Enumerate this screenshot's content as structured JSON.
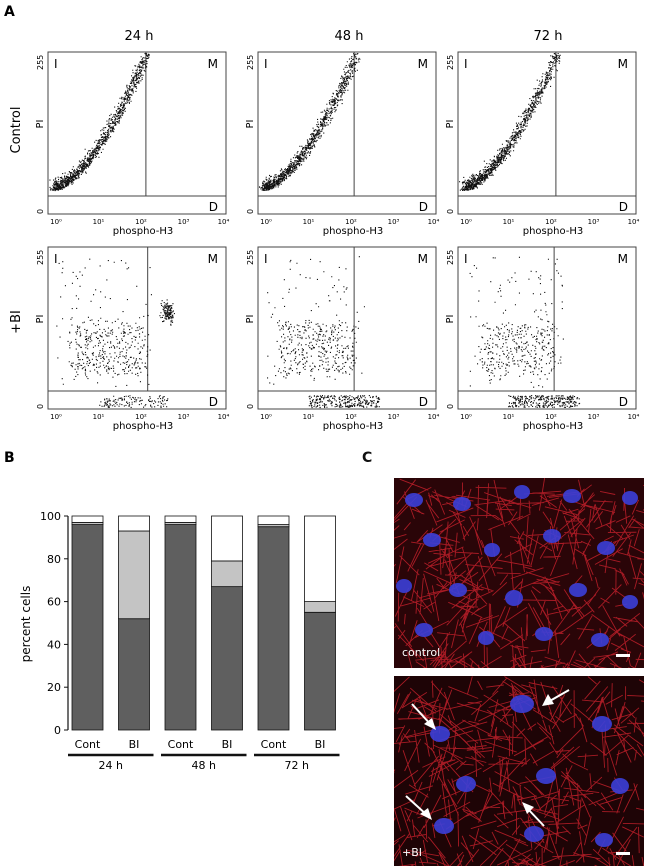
{
  "figure": {
    "panel_a_label": "A",
    "panel_b_label": "B",
    "panel_c_label": "C"
  },
  "panel_a": {
    "time_labels": [
      "24 h",
      "48 h",
      "72 h"
    ],
    "row_labels": [
      "Control",
      "+BI"
    ],
    "x_axis_label": "phospho-H3",
    "y_axis_label": "PI",
    "y_top_tick": "255",
    "y_bottom_tick": "0",
    "quadrant_labels": {
      "interphase": "I",
      "mitosis": "M",
      "debris": "D"
    },
    "x_ticks": [
      "10⁰",
      "10¹",
      "10²",
      "10³",
      "10⁴"
    ]
  },
  "chart_data": {
    "type": "bar",
    "stacked": true,
    "ylabel": "percent cells",
    "ylim": [
      0,
      100
    ],
    "yticks": [
      0,
      20,
      40,
      60,
      80,
      100
    ],
    "categories": [
      "Cont",
      "BI",
      "Cont",
      "BI",
      "Cont",
      "BI"
    ],
    "groups": [
      {
        "label": "24 h",
        "members": [
          0,
          1
        ]
      },
      {
        "label": "48 h",
        "members": [
          2,
          3
        ]
      },
      {
        "label": "72 h",
        "members": [
          4,
          5
        ]
      }
    ],
    "series": [
      {
        "color": "#5f5f5f",
        "values": [
          96,
          52,
          96,
          67,
          95,
          55
        ]
      },
      {
        "color": "#c4c4c4",
        "values": [
          1,
          41,
          1,
          12,
          1,
          5
        ]
      },
      {
        "color": "#ffffff",
        "values": [
          3,
          7,
          3,
          21,
          4,
          40
        ]
      }
    ]
  },
  "panel_c": {
    "top_label": "control",
    "bottom_label": "+BI"
  }
}
